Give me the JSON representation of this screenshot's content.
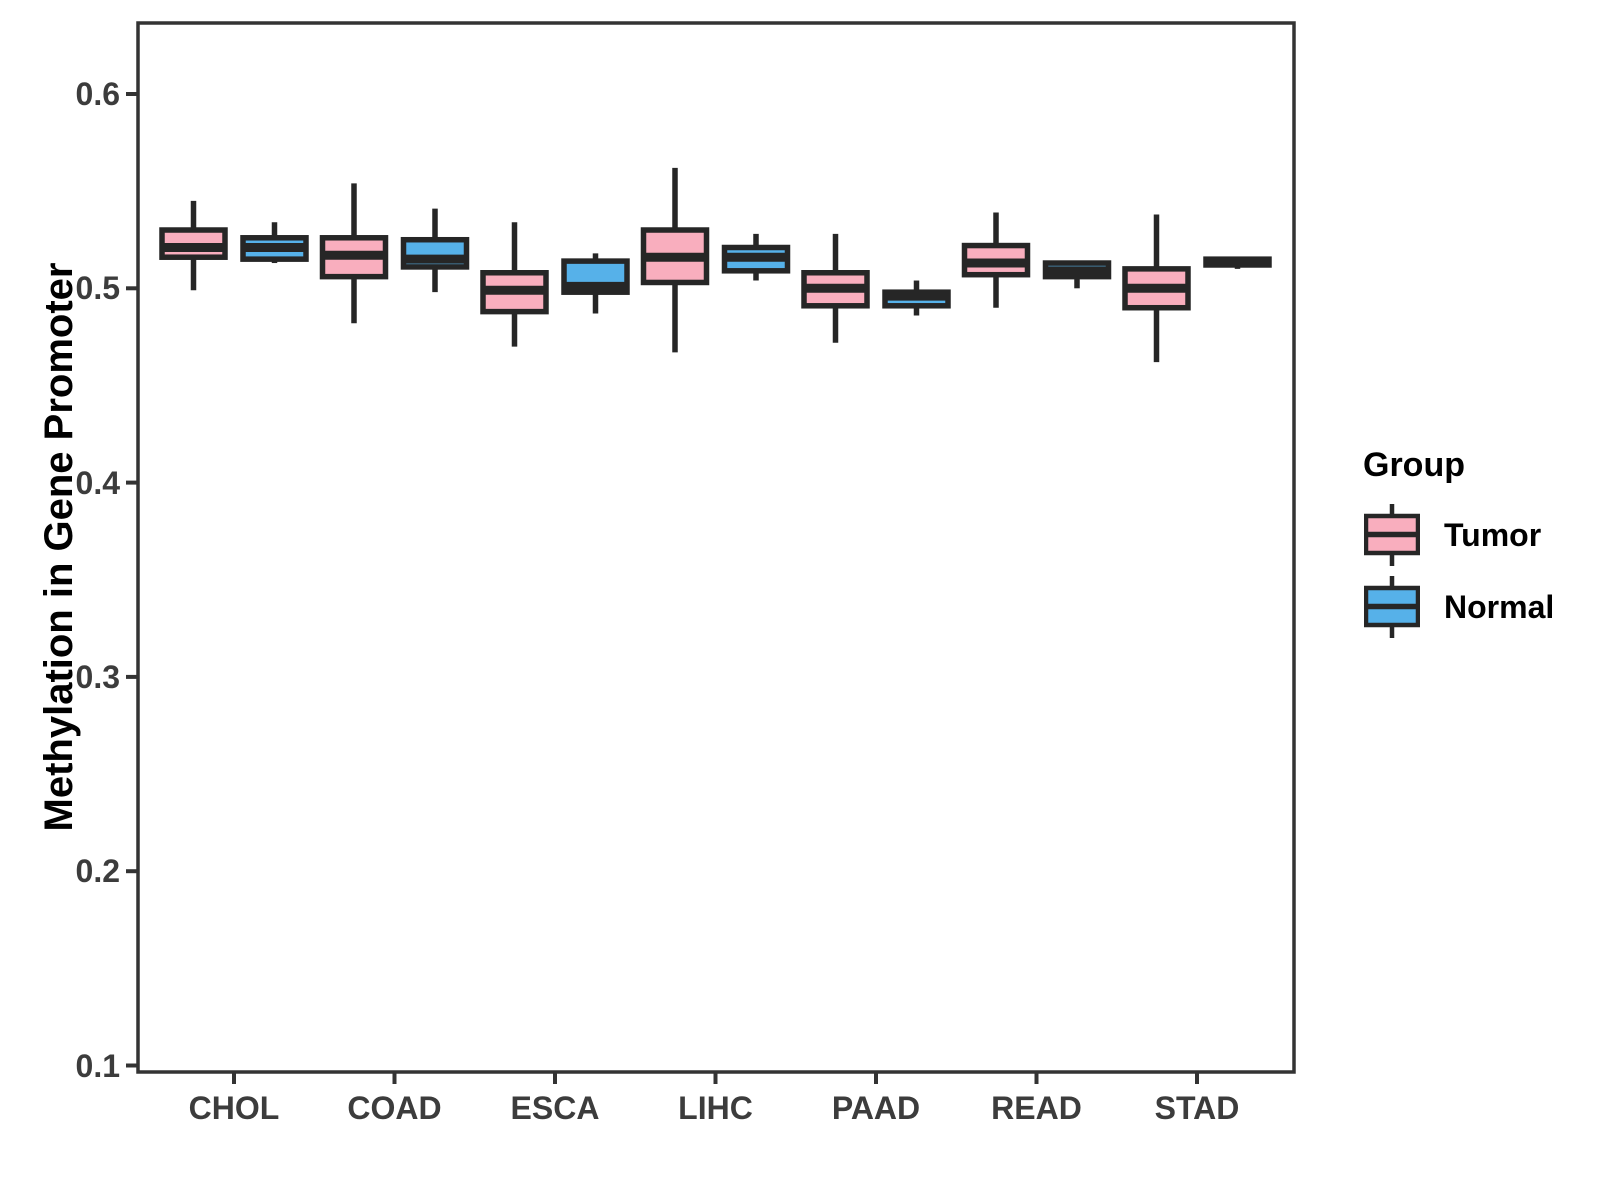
{
  "chart_data": {
    "type": "boxplot",
    "title": "",
    "xlabel": "",
    "ylabel": "Methylation in Gene Promoter",
    "ylim": [
      0.1,
      0.6
    ],
    "y_ticks": [
      0.6,
      0.5,
      0.4,
      0.3,
      0.2,
      0.1
    ],
    "y_tick_labels": [
      "0.6",
      "0.5",
      "0.4",
      "0.3",
      "0.2",
      "0.1"
    ],
    "categories": [
      "CHOL",
      "COAD",
      "ESCA",
      "LIHC",
      "PAAD",
      "READ",
      "STAD"
    ],
    "grid": "off",
    "legend": {
      "title": "Group",
      "position": "right"
    },
    "colors": {
      "tumor_fill": "#F9AEBE",
      "normal_fill": "#56B1E9",
      "line": "#262626",
      "axis": "#333333",
      "tick_text": "#3C3C3C"
    },
    "series": [
      {
        "name": "Tumor",
        "fill": "#F9AEBE",
        "boxes": [
          {
            "category": "CHOL",
            "min": 0.499,
            "q1": 0.516,
            "median": 0.521,
            "q3": 0.53,
            "max": 0.545
          },
          {
            "category": "COAD",
            "min": 0.482,
            "q1": 0.506,
            "median": 0.517,
            "q3": 0.526,
            "max": 0.554
          },
          {
            "category": "ESCA",
            "min": 0.47,
            "q1": 0.488,
            "median": 0.499,
            "q3": 0.508,
            "max": 0.534
          },
          {
            "category": "LIHC",
            "min": 0.467,
            "q1": 0.503,
            "median": 0.516,
            "q3": 0.53,
            "max": 0.562
          },
          {
            "category": "PAAD",
            "min": 0.472,
            "q1": 0.491,
            "median": 0.5,
            "q3": 0.508,
            "max": 0.528
          },
          {
            "category": "READ",
            "min": 0.49,
            "q1": 0.507,
            "median": 0.513,
            "q3": 0.522,
            "max": 0.539
          },
          {
            "category": "STAD",
            "min": 0.462,
            "q1": 0.49,
            "median": 0.5,
            "q3": 0.51,
            "max": 0.538
          }
        ]
      },
      {
        "name": "Normal",
        "fill": "#56B1E9",
        "boxes": [
          {
            "category": "CHOL",
            "min": 0.513,
            "q1": 0.515,
            "median": 0.521,
            "q3": 0.526,
            "max": 0.534
          },
          {
            "category": "COAD",
            "min": 0.498,
            "q1": 0.511,
            "median": 0.515,
            "q3": 0.525,
            "max": 0.541
          },
          {
            "category": "ESCA",
            "min": 0.487,
            "q1": 0.498,
            "median": 0.501,
            "q3": 0.514,
            "max": 0.518
          },
          {
            "category": "LIHC",
            "min": 0.504,
            "q1": 0.509,
            "median": 0.516,
            "q3": 0.521,
            "max": 0.528
          },
          {
            "category": "PAAD",
            "min": 0.486,
            "q1": 0.491,
            "median": 0.496,
            "q3": 0.498,
            "max": 0.504
          },
          {
            "category": "READ",
            "min": 0.5,
            "q1": 0.506,
            "median": 0.509,
            "q3": 0.513,
            "max": 0.513
          },
          {
            "category": "STAD",
            "min": 0.51,
            "q1": 0.512,
            "median": 0.513,
            "q3": 0.515,
            "max": 0.516
          }
        ]
      }
    ]
  }
}
